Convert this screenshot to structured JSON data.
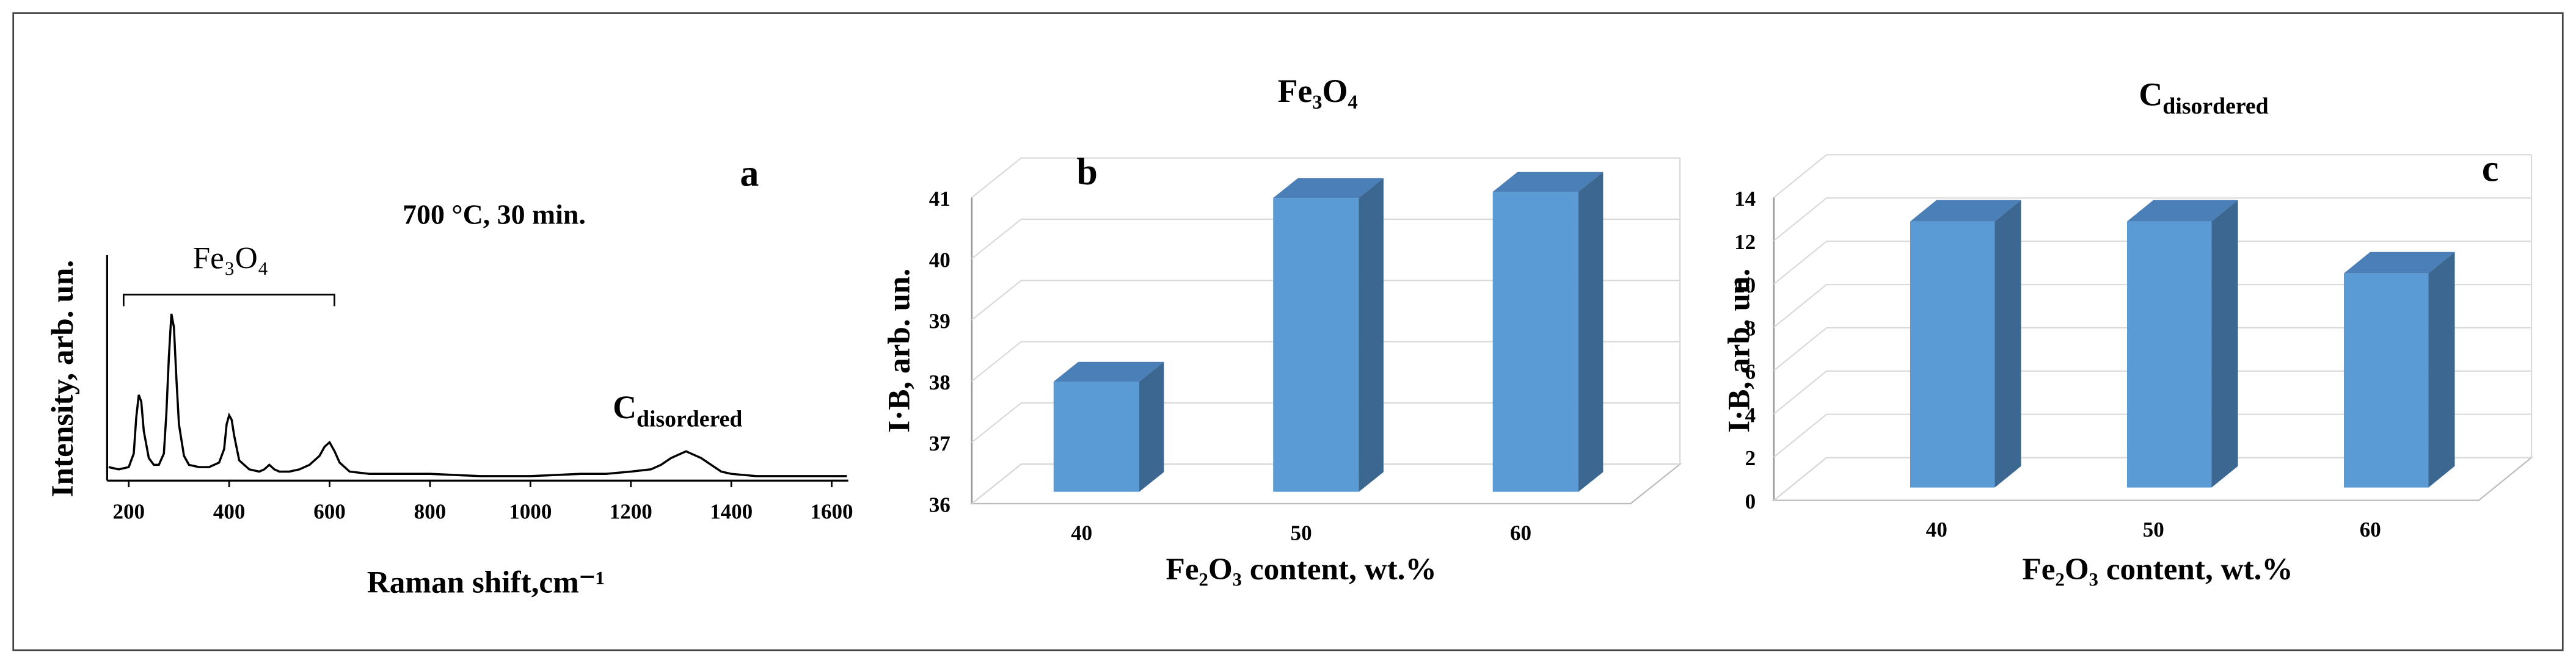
{
  "chart_data": [
    {
      "type": "line",
      "x_label": "Raman shift,cm⁻¹",
      "y_label": "Intensity, arb. un.",
      "annotations": {
        "condition": "700 °C, 30 min.",
        "panel": "a",
        "bracket": "Fe₃O₄",
        "peak": {
          "text": "C",
          "sub": "disordered"
        }
      },
      "x": [
        160,
        180,
        200,
        210,
        215,
        220,
        225,
        230,
        240,
        250,
        260,
        270,
        275,
        280,
        285,
        290,
        295,
        300,
        310,
        320,
        340,
        360,
        380,
        390,
        395,
        400,
        405,
        410,
        420,
        440,
        460,
        470,
        480,
        490,
        500,
        520,
        540,
        560,
        580,
        590,
        600,
        610,
        620,
        640,
        680,
        720,
        800,
        900,
        1000,
        1100,
        1150,
        1200,
        1240,
        1260,
        1280,
        1300,
        1310,
        1320,
        1340,
        1360,
        1380,
        1400,
        1450,
        1500,
        1550,
        1600,
        1630
      ],
      "values": [
        6,
        5,
        6,
        12,
        28,
        38,
        35,
        22,
        10,
        7,
        7,
        12,
        30,
        55,
        74,
        68,
        45,
        25,
        11,
        7,
        6,
        6,
        8,
        14,
        25,
        29,
        27,
        20,
        9,
        5,
        4,
        5,
        7,
        5,
        4,
        4,
        5,
        7,
        11,
        15,
        17,
        13,
        8,
        4,
        3,
        3,
        3,
        2,
        2,
        3,
        3,
        4,
        5,
        7,
        10,
        12,
        13,
        12,
        10,
        7,
        4,
        3,
        2,
        2,
        2,
        2,
        2
      ],
      "color": "#000000",
      "xlim": [
        157,
        1633
      ],
      "ylim": [
        0,
        100
      ],
      "xticks": [
        200,
        400,
        600,
        800,
        1000,
        1200,
        1400,
        1600
      ]
    },
    {
      "type": "bar",
      "three_d": true,
      "title": "Fe₃O₄",
      "panel": "b",
      "x_label": "Fe₂O₃ content, wt.%",
      "y_label": "I·B, arb. un.",
      "categories": [
        "40",
        "50",
        "60"
      ],
      "values": [
        37.8,
        40.8,
        40.9
      ],
      "color": "#5b9bd5",
      "ylim": [
        36,
        41
      ],
      "yticks": [
        36,
        37,
        38,
        39,
        40,
        41
      ],
      "grid": true
    },
    {
      "type": "bar",
      "three_d": true,
      "title": {
        "text": "C",
        "sub": "disordered"
      },
      "panel": "c",
      "x_label": "Fe₂O₃ content, wt.%",
      "y_label": "I·B, arb. un.",
      "categories": [
        "40",
        "50",
        "60"
      ],
      "values": [
        12.3,
        12.3,
        9.9
      ],
      "color": "#5b9bd5",
      "ylim": [
        0,
        14
      ],
      "yticks": [
        0,
        2,
        4,
        6,
        8,
        10,
        12,
        14
      ],
      "grid": true
    }
  ]
}
